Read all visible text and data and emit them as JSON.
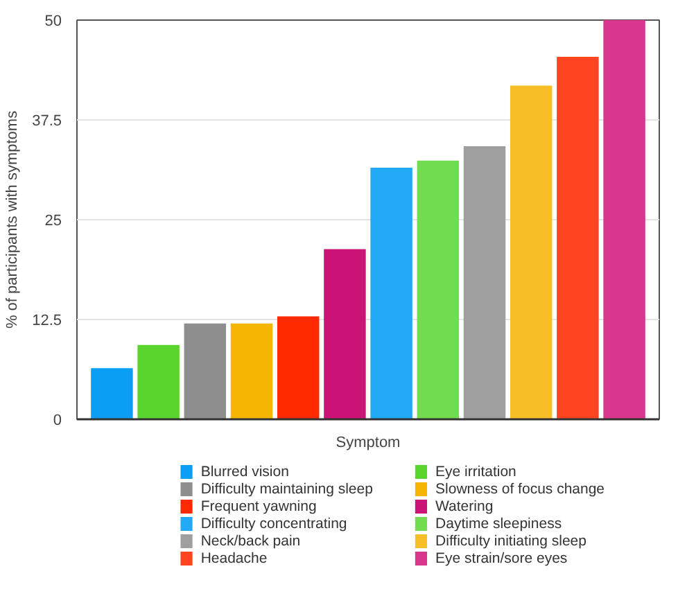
{
  "chart_data": {
    "type": "bar",
    "xlabel": "Symptom",
    "ylabel": "% of participants with symptoms",
    "categories": [
      null
    ],
    "ylim": [
      0,
      50
    ],
    "yticks": [
      0,
      12.5,
      25,
      37.5,
      50
    ],
    "grid": "y",
    "legend": "bottom",
    "series": [
      {
        "name": "Blurred vision",
        "color": "#0a9ff5",
        "values": [
          6.4
        ]
      },
      {
        "name": "Eye irritation",
        "color": "#5ad52e",
        "values": [
          9.3
        ]
      },
      {
        "name": "Difficulty maintaining sleep",
        "color": "#8e8e8e",
        "values": [
          12
        ]
      },
      {
        "name": "Slowness of focus change",
        "color": "#f6b500",
        "values": [
          12
        ]
      },
      {
        "name": "Frequent yawning",
        "color": "#ff2a00",
        "values": [
          12.9
        ]
      },
      {
        "name": "Watering",
        "color": "#cc1478",
        "values": [
          21.3
        ]
      },
      {
        "name": "Difficulty concentrating",
        "color": "#22a9f5",
        "values": [
          31.5
        ]
      },
      {
        "name": "Daytime sleepiness",
        "color": "#70dc4e",
        "values": [
          32.4
        ]
      },
      {
        "name": "Neck/back pain",
        "color": "#9f9f9f",
        "values": [
          34.2
        ]
      },
      {
        "name": "Difficulty initiating sleep",
        "color": "#f6bf28",
        "values": [
          41.8
        ]
      },
      {
        "name": "Headache",
        "color": "#ff4422",
        "values": [
          45.4
        ]
      },
      {
        "name": "Eye strain/sore eyes",
        "color": "#d9368e",
        "values": [
          50
        ]
      }
    ]
  }
}
